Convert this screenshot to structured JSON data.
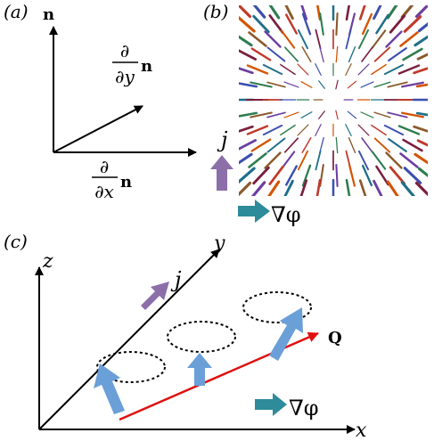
{
  "panel_a": {
    "label": "(a)",
    "n_label": "n",
    "dy_num": "∂",
    "dy_den": "∂y",
    "dy_vec": "n",
    "dx_num": "∂",
    "dx_den": "∂x",
    "dx_vec": "n"
  },
  "panel_b": {
    "label": "(b)",
    "j_label": "j",
    "grad_label": "∇φ"
  },
  "panel_c": {
    "label": "(c)",
    "z_label": "z",
    "y_label": "y",
    "x_label": "x",
    "j_label": "j",
    "q_label": "Q",
    "grad_label": "∇φ"
  },
  "colors": {
    "j_arrow": "#8c6fa8",
    "grad_arrow": "#2e8b9a",
    "spin_arrow": "#6a9fd8",
    "q_line": "#e01010"
  }
}
